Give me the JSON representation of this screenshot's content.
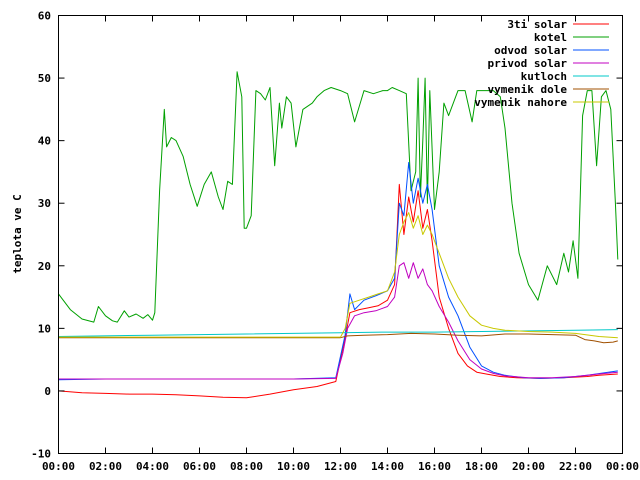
{
  "chart_data": {
    "type": "line",
    "title": "",
    "xlabel": "",
    "ylabel": "teplota ve C",
    "xlim": [
      0,
      24
    ],
    "ylim": [
      -10,
      60
    ],
    "grid": false,
    "legend_position": "top-right",
    "x_ticks": [
      {
        "value": 0,
        "label": "00:00"
      },
      {
        "value": 2,
        "label": "02:00"
      },
      {
        "value": 4,
        "label": "04:00"
      },
      {
        "value": 6,
        "label": "06:00"
      },
      {
        "value": 8,
        "label": "08:00"
      },
      {
        "value": 10,
        "label": "10:00"
      },
      {
        "value": 12,
        "label": "12:00"
      },
      {
        "value": 14,
        "label": "14:00"
      },
      {
        "value": 16,
        "label": "16:00"
      },
      {
        "value": 18,
        "label": "18:00"
      },
      {
        "value": 20,
        "label": "20:00"
      },
      {
        "value": 22,
        "label": "22:00"
      },
      {
        "value": 24,
        "label": "00:00"
      }
    ],
    "y_ticks": [
      {
        "value": -10,
        "label": "-10"
      },
      {
        "value": 0,
        "label": "0"
      },
      {
        "value": 10,
        "label": "10"
      },
      {
        "value": 20,
        "label": "20"
      },
      {
        "value": 30,
        "label": "30"
      },
      {
        "value": 40,
        "label": "40"
      },
      {
        "value": 50,
        "label": "50"
      },
      {
        "value": 60,
        "label": "60"
      }
    ],
    "series": [
      {
        "name": "3ti solar",
        "color": "#ff0000",
        "x": [
          0,
          1,
          2,
          3,
          4,
          5,
          6,
          7,
          8,
          9,
          10,
          11,
          11.8,
          12.2,
          12.4,
          12.8,
          13.2,
          13.6,
          14,
          14.3,
          14.5,
          14.7,
          14.9,
          15.1,
          15.3,
          15.5,
          15.7,
          15.9,
          16.2,
          16.6,
          17,
          17.4,
          17.8,
          18.2,
          18.8,
          19.5,
          20.5,
          21.5,
          22.5,
          23,
          23.8
        ],
        "y": [
          0,
          -0.3,
          -0.4,
          -0.5,
          -0.5,
          -0.6,
          -0.8,
          -1,
          -1.1,
          -0.5,
          0.2,
          0.7,
          1.5,
          8.5,
          12.5,
          13,
          13.3,
          13.6,
          14.5,
          17,
          33,
          25,
          31,
          27,
          32,
          26,
          29,
          24,
          15,
          10,
          6,
          4,
          3,
          2.7,
          2.3,
          2.1,
          2,
          2.1,
          2.3,
          2.5,
          2.7
        ]
      },
      {
        "name": "kotel",
        "color": "#00a000",
        "x": [
          0,
          0.5,
          1,
          1.5,
          1.7,
          2,
          2.3,
          2.5,
          2.8,
          3,
          3.3,
          3.6,
          3.8,
          4.0,
          4.1,
          4.3,
          4.5,
          4.6,
          4.8,
          5,
          5.3,
          5.6,
          5.9,
          6.2,
          6.5,
          6.8,
          7.0,
          7.2,
          7.4,
          7.6,
          7.8,
          7.9,
          8.0,
          8.2,
          8.4,
          8.6,
          8.8,
          9.0,
          9.2,
          9.4,
          9.5,
          9.7,
          9.9,
          10.1,
          10.4,
          10.8,
          11.0,
          11.3,
          11.6,
          12.0,
          12.3,
          12.6,
          13.0,
          13.4,
          13.8,
          14.0,
          14.2,
          14.5,
          14.8,
          15.0,
          15.2,
          15.3,
          15.4,
          15.5,
          15.6,
          15.7,
          15.8,
          16.0,
          16.2,
          16.4,
          16.6,
          16.8,
          17.0,
          17.3,
          17.6,
          17.8,
          18.0,
          18.2,
          18.5,
          18.8,
          19.0,
          19.3,
          19.6,
          20.0,
          20.4,
          20.8,
          21.2,
          21.5,
          21.7,
          21.9,
          22.1,
          22.3,
          22.5,
          22.7,
          22.9,
          23.1,
          23.3,
          23.5,
          23.7,
          23.8
        ],
        "y": [
          15.5,
          13,
          11.5,
          11,
          13.5,
          12,
          11.2,
          11,
          12.8,
          11.8,
          12.3,
          11.6,
          12.2,
          11.3,
          12.5,
          32,
          45,
          39,
          40.5,
          40,
          37.5,
          33,
          29.5,
          33,
          35,
          31,
          29,
          33.5,
          33,
          51,
          47,
          26,
          26,
          28,
          48,
          47.5,
          46.5,
          48.5,
          36,
          46,
          42,
          47,
          46,
          39,
          45,
          46,
          47,
          48,
          48.5,
          48,
          47.5,
          43,
          48,
          47.5,
          48,
          48,
          48.5,
          48,
          47.5,
          32,
          35,
          50,
          31,
          40,
          50,
          30,
          48,
          29,
          35,
          46,
          44,
          46,
          48,
          48,
          43,
          48,
          48,
          48,
          48,
          47,
          42,
          30,
          22,
          17,
          14.5,
          20,
          17,
          22,
          19,
          24,
          18,
          44,
          48,
          48,
          36,
          47,
          48,
          45,
          30,
          21
        ]
      },
      {
        "name": "odvod solar",
        "color": "#0050ff",
        "x": [
          0,
          2,
          4,
          6,
          8,
          10,
          11.8,
          12.2,
          12.4,
          12.6,
          13,
          13.5,
          14,
          14.3,
          14.5,
          14.7,
          14.9,
          15.1,
          15.3,
          15.5,
          15.7,
          15.9,
          16.2,
          16.6,
          17,
          17.5,
          18,
          18.5,
          19,
          19.8,
          20.5,
          21.5,
          22.5,
          23.8
        ],
        "y": [
          1.8,
          1.9,
          1.9,
          1.9,
          1.9,
          1.9,
          2.1,
          9,
          15.5,
          13,
          14.5,
          15.2,
          16,
          18,
          30,
          28,
          36.5,
          30,
          34,
          30,
          33,
          29,
          20,
          15,
          12,
          7,
          4,
          3,
          2.5,
          2.1,
          2,
          2.1,
          2.5,
          3.2
        ]
      },
      {
        "name": "privod solar",
        "color": "#c000c0",
        "x": [
          0,
          2,
          4,
          6,
          8,
          10,
          11.8,
          12.1,
          12.3,
          12.6,
          13,
          13.5,
          14,
          14.3,
          14.5,
          14.7,
          14.9,
          15.1,
          15.3,
          15.5,
          15.7,
          15.9,
          16.2,
          16.6,
          17,
          17.5,
          18,
          18.5,
          19,
          20,
          21,
          22,
          23,
          23.8
        ],
        "y": [
          1.9,
          1.9,
          1.9,
          1.9,
          1.9,
          1.9,
          2,
          6,
          10,
          12,
          12.5,
          12.8,
          13.5,
          15,
          20,
          20.5,
          18,
          20.5,
          18,
          19.5,
          17,
          16,
          13.5,
          11,
          8,
          5,
          3.5,
          2.8,
          2.4,
          2.1,
          2.1,
          2.3,
          2.7,
          3
        ]
      },
      {
        "name": "kutloch",
        "color": "#00c8c8",
        "x": [
          0,
          4,
          8,
          12,
          14,
          16,
          18,
          20,
          22,
          23.8
        ],
        "y": [
          8.7,
          8.9,
          9.1,
          9.3,
          9.4,
          9.4,
          9.5,
          9.6,
          9.7,
          9.8
        ]
      },
      {
        "name": "vymenik dole",
        "color": "#a05000",
        "x": [
          0,
          2,
          4,
          6,
          8,
          10,
          12,
          12.3,
          13,
          14,
          15,
          16,
          17,
          18,
          19,
          20,
          21,
          22,
          22.4,
          22.8,
          23.2,
          23.6,
          23.8
        ],
        "y": [
          8.5,
          8.5,
          8.5,
          8.5,
          8.5,
          8.5,
          8.5,
          8.8,
          8.9,
          9,
          9.2,
          9.1,
          8.9,
          8.8,
          9.1,
          9.1,
          9,
          8.9,
          8.2,
          8,
          7.7,
          7.8,
          8
        ]
      },
      {
        "name": "vymenik nahore",
        "color": "#c8c800",
        "x": [
          0,
          2,
          4,
          6,
          8,
          10,
          12,
          12.2,
          12.4,
          12.8,
          13.2,
          13.6,
          14,
          14.3,
          14.5,
          14.7,
          14.9,
          15.1,
          15.3,
          15.5,
          15.7,
          15.9,
          16.2,
          16.6,
          17,
          17.5,
          18,
          18.5,
          19,
          20,
          21,
          22,
          23,
          23.8
        ],
        "y": [
          8.6,
          8.6,
          8.6,
          8.6,
          8.6,
          8.6,
          8.6,
          10,
          14,
          14.5,
          15,
          15.5,
          16,
          19,
          25,
          27,
          28.5,
          26,
          28,
          25,
          26.5,
          25,
          22,
          18,
          15,
          12,
          10.5,
          10,
          9.7,
          9.5,
          9.4,
          9.2,
          8.7,
          8.5
        ]
      }
    ]
  }
}
